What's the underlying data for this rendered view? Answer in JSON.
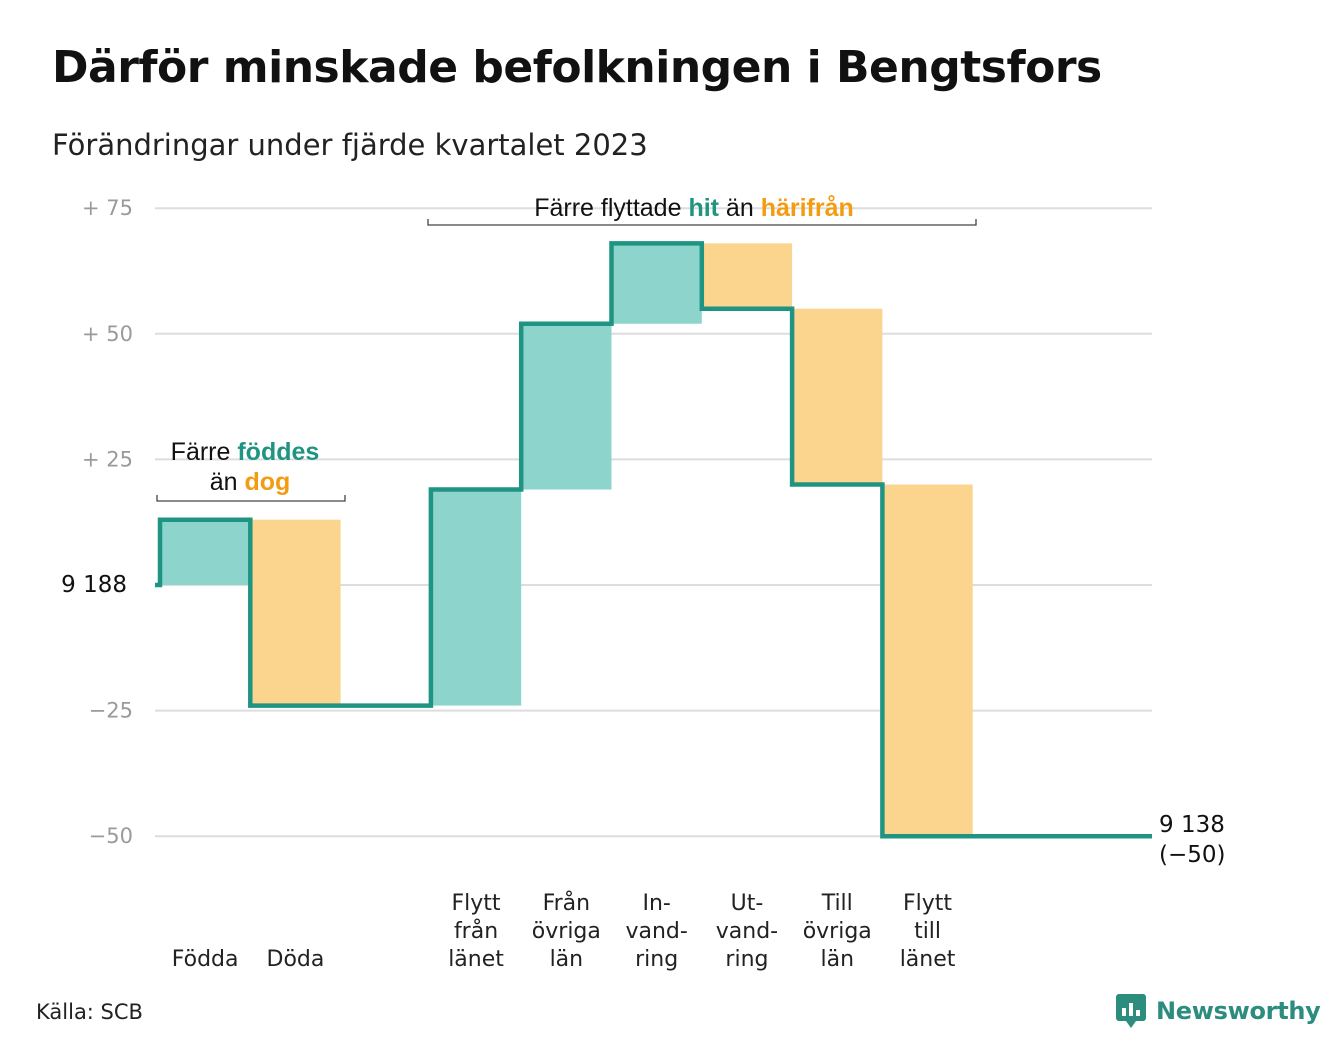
{
  "title": "Därför minskade befolkningen i Bengtsfors",
  "subtitle": "Förändringar under fjärde kvartalet 2023",
  "source": "Källa: SCB",
  "brand": "Newsworthy",
  "colors": {
    "inflow": "#8dd5cc",
    "outflow": "#fbd58e",
    "line": "#1f9483",
    "grid": "#dddddd",
    "tick": "#9a9a9a",
    "teal_text": "#1f9483",
    "orange_text": "#f39c12"
  },
  "chart_data": {
    "type": "bar",
    "subtype": "waterfall",
    "start_value": 9188,
    "end_value": 9138,
    "ylim": [
      -50,
      75
    ],
    "yticks": [
      {
        "value": 75,
        "label": "+  75"
      },
      {
        "value": 50,
        "label": "+  50"
      },
      {
        "value": 25,
        "label": "+  25"
      },
      {
        "value": 0,
        "label": "9  188"
      },
      {
        "value": -25,
        "label": "−25"
      },
      {
        "value": -50,
        "label": "−50"
      }
    ],
    "steps": [
      {
        "lines": [
          "Födda"
        ],
        "change": 13,
        "kind": "in"
      },
      {
        "lines": [
          "Döda"
        ],
        "change": -37,
        "kind": "out"
      },
      {
        "lines": [],
        "change": 0,
        "kind": "none"
      },
      {
        "lines": [
          "Flytt",
          "från",
          "länet"
        ],
        "change": 43,
        "kind": "in"
      },
      {
        "lines": [
          "Från",
          "övriga",
          "län"
        ],
        "change": 33,
        "kind": "in"
      },
      {
        "lines": [
          "In-",
          "vand-",
          "ring"
        ],
        "change": 16,
        "kind": "in"
      },
      {
        "lines": [
          "Ut-",
          "vand-",
          "ring"
        ],
        "change": -13,
        "kind": "out"
      },
      {
        "lines": [
          "Till",
          "övriga",
          "län"
        ],
        "change": -35,
        "kind": "out"
      },
      {
        "lines": [
          "Flytt",
          "till",
          "länet"
        ],
        "change": -70,
        "kind": "out"
      }
    ],
    "end_labels": [
      "9 138",
      "(−50)"
    ],
    "annotations": [
      {
        "parts": [
          {
            "text": "Färre ",
            "style": "plain"
          },
          {
            "text": "föddes",
            "style": "teal"
          }
        ],
        "parts2": [
          {
            "text": "än ",
            "style": "plain"
          },
          {
            "text": "dog",
            "style": "orange"
          }
        ]
      },
      {
        "parts": [
          {
            "text": "Färre flyttade ",
            "style": "plain"
          },
          {
            "text": "hit",
            "style": "teal"
          },
          {
            "text": "  än ",
            "style": "plain"
          },
          {
            "text": "härifrån",
            "style": "orange"
          }
        ],
        "parts2": []
      }
    ]
  }
}
